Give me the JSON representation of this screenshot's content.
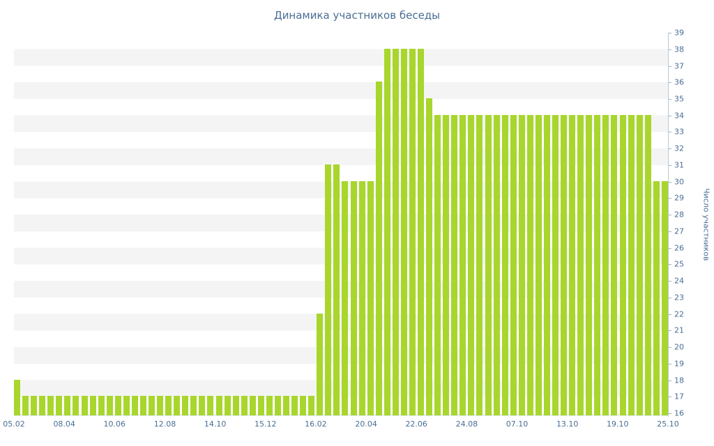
{
  "title": "Динамика участников беседы",
  "y_axis_title": "Число участников",
  "colors": {
    "bar": "#a8d62d",
    "text": "#4a6d94",
    "axis_line": "#bcc8d4",
    "tick_mark": "#9fb0c0",
    "stripe": "#f4f4f4",
    "baseline": "#dfe5eb",
    "background": "#ffffff"
  },
  "chart_data": {
    "type": "bar",
    "title": "Динамика участников беседы",
    "xlabel": "",
    "ylabel": "Число участников",
    "ylim": [
      16,
      39
    ],
    "grid": "horizontal-stripes",
    "legend": "none",
    "x_tick_labels": [
      "05.02",
      "08.04",
      "10.06",
      "12.08",
      "14.10",
      "15.12",
      "16.02",
      "20.04",
      "22.06",
      "24.08",
      "07.10",
      "13.10",
      "19.10",
      "25.10"
    ],
    "y_ticks": [
      39,
      38,
      37,
      36,
      35,
      34,
      33,
      32,
      31,
      30,
      29,
      28,
      27,
      26,
      25,
      24,
      23,
      22,
      21,
      20,
      19,
      18,
      17,
      16
    ],
    "values": [
      18,
      17,
      17,
      17,
      17,
      17,
      17,
      17,
      17,
      17,
      17,
      17,
      17,
      17,
      17,
      17,
      17,
      17,
      17,
      17,
      17,
      17,
      17,
      17,
      17,
      17,
      17,
      17,
      17,
      17,
      17,
      17,
      17,
      17,
      17,
      17,
      22,
      31,
      31,
      30,
      30,
      30,
      30,
      36,
      38,
      38,
      38,
      38,
      38,
      35,
      34,
      34,
      34,
      34,
      34,
      34,
      34,
      34,
      34,
      34,
      34,
      34,
      34,
      34,
      34,
      34,
      34,
      34,
      34,
      34,
      34,
      34,
      34,
      34,
      34,
      34,
      30,
      30
    ]
  }
}
